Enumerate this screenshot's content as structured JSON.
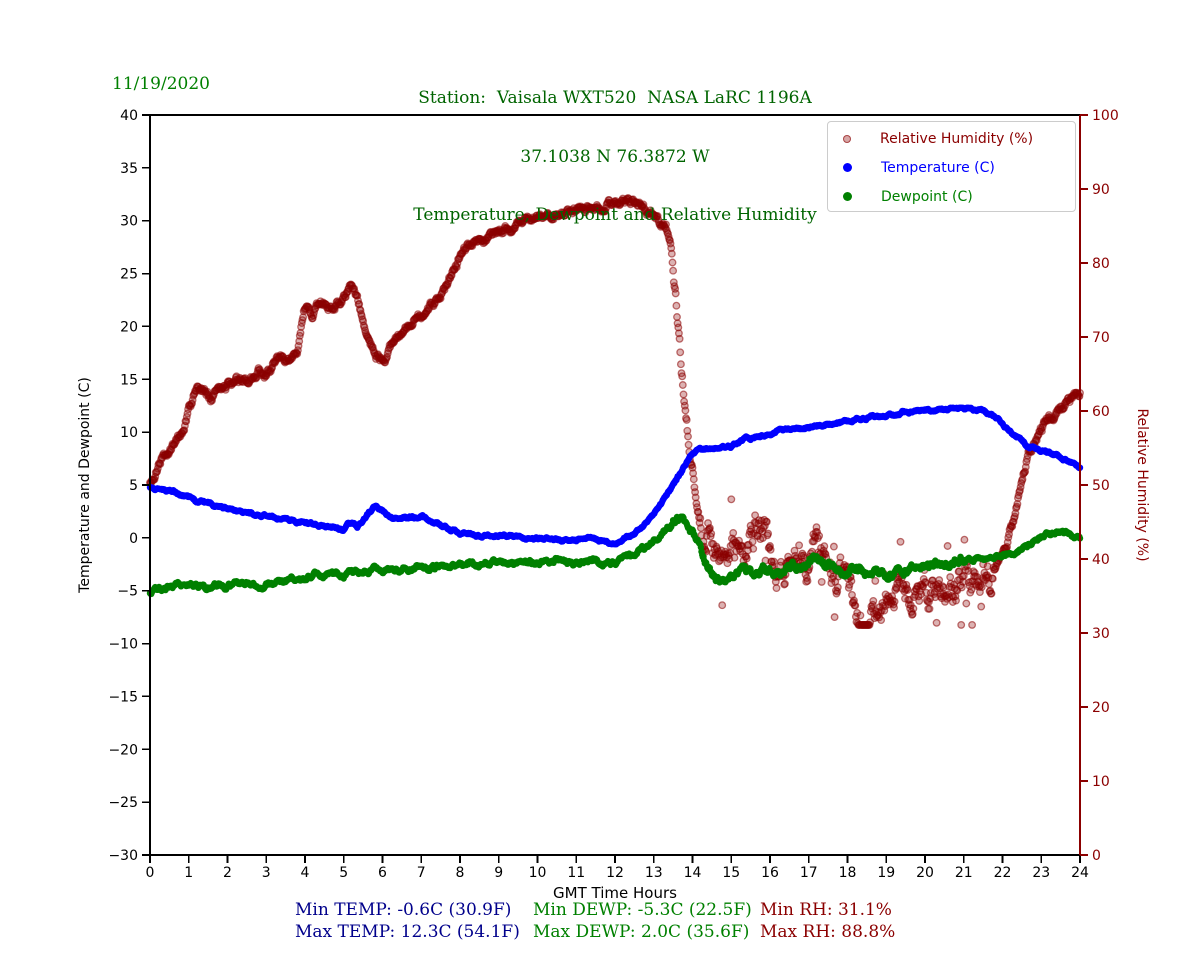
{
  "figure": {
    "date_label": "11/19/2020",
    "title_lines": [
      "Station:  Vaisala WXT520  NASA LaRC 1196A",
      "37.1038 N 76.3872 W",
      "Temperature, Dewpoint and Relative Humidity"
    ]
  },
  "colors": {
    "background": "#ffffff",
    "title_green": "#006400",
    "date_green": "#008000",
    "temperature_blue": "#0000ff",
    "dewpoint_green": "#008000",
    "humidity_darkred": "#8b0000",
    "stats_temp_blue": "#00008b",
    "stats_dewp_green": "#008000",
    "stats_rh_red": "#8b0000",
    "axis_black": "#000000",
    "legend_border": "#cccccc"
  },
  "chart_data": {
    "type": "scatter",
    "xlabel": "GMT Time Hours",
    "ylabel_left": "Temperature and Dewpoint (C)",
    "ylabel_right": "Relative Humidity (%)",
    "xlim": [
      0,
      24
    ],
    "ylim_left": [
      -30,
      40
    ],
    "ylim_right": [
      0,
      100
    ],
    "xtick_values": [
      0,
      1,
      2,
      3,
      4,
      5,
      6,
      7,
      8,
      9,
      10,
      11,
      12,
      13,
      14,
      15,
      16,
      17,
      18,
      19,
      20,
      21,
      22,
      23,
      24
    ],
    "ytick_left_values": [
      40,
      35,
      30,
      25,
      20,
      15,
      10,
      5,
      0,
      -5,
      -10,
      -15,
      -20,
      -25,
      -30
    ],
    "ytick_right_values": [
      100,
      90,
      80,
      70,
      60,
      50,
      40,
      30,
      20,
      10,
      0
    ],
    "grid": false,
    "legend": {
      "position": "upper right",
      "entries": [
        {
          "label": "Relative Humidity (%)",
          "color": "#8b0000",
          "marker": "faded-dot"
        },
        {
          "label": "Temperature (C)",
          "color": "#0000ff",
          "marker": "dot"
        },
        {
          "label": "Dewpoint (C)",
          "color": "#008000",
          "marker": "dot"
        }
      ]
    },
    "sample_interval_minutes": 1,
    "noise_seed": 20201119,
    "series": [
      {
        "name": "Relative Humidity (%)",
        "axis": "right",
        "color": "#8b0000",
        "style": {
          "radius": 3.3,
          "fill_opacity": 0.3,
          "stroke_opacity": 0.55,
          "stroke_width": 1.3
        },
        "clamp": [
          31.1,
          88.8
        ],
        "noise_segments": [
          [
            0,
            13.3,
            0.4
          ],
          [
            13.3,
            14.2,
            0.7
          ],
          [
            14.2,
            21.8,
            1.6
          ],
          [
            21.8,
            24,
            0.45
          ]
        ],
        "outliers": {
          "from": 14.2,
          "to": 21.8,
          "prob": 0.04,
          "scale": 1.5
        },
        "keypoints": [
          [
            0,
            50.5
          ],
          [
            0.2,
            52.5
          ],
          [
            0.4,
            54.5
          ],
          [
            0.6,
            55.5
          ],
          [
            0.8,
            56.5
          ],
          [
            1,
            60
          ],
          [
            1.2,
            63
          ],
          [
            1.4,
            62.5
          ],
          [
            1.6,
            61.5
          ],
          [
            1.8,
            63
          ],
          [
            2,
            63.5
          ],
          [
            2.2,
            64.5
          ],
          [
            2.4,
            64
          ],
          [
            2.6,
            64.5
          ],
          [
            2.8,
            65.5
          ],
          [
            3,
            64.5
          ],
          [
            3.2,
            66.5
          ],
          [
            3.4,
            67.5
          ],
          [
            3.6,
            66.5
          ],
          [
            3.8,
            68
          ],
          [
            4,
            74
          ],
          [
            4.2,
            73
          ],
          [
            4.4,
            74.5
          ],
          [
            4.6,
            73.5
          ],
          [
            4.8,
            74.5
          ],
          [
            5,
            75
          ],
          [
            5.2,
            77
          ],
          [
            5.4,
            74
          ],
          [
            5.6,
            70.5
          ],
          [
            5.8,
            67.5
          ],
          [
            6,
            66.5
          ],
          [
            6.2,
            68.5
          ],
          [
            6.4,
            70
          ],
          [
            6.6,
            71.5
          ],
          [
            6.8,
            72.5
          ],
          [
            7,
            73.5
          ],
          [
            7.2,
            74
          ],
          [
            7.4,
            75.5
          ],
          [
            7.6,
            76.5
          ],
          [
            7.8,
            79
          ],
          [
            8,
            81
          ],
          [
            8.2,
            82.5
          ],
          [
            8.5,
            83
          ],
          [
            8.8,
            83.5
          ],
          [
            9.1,
            84.5
          ],
          [
            9.4,
            85
          ],
          [
            9.7,
            85.5
          ],
          [
            10,
            86
          ],
          [
            10.4,
            86.5
          ],
          [
            10.8,
            87
          ],
          [
            11.2,
            87.5
          ],
          [
            11.6,
            87.5
          ],
          [
            12,
            88.5
          ],
          [
            12.2,
            88.8
          ],
          [
            12.5,
            88
          ],
          [
            12.8,
            87
          ],
          [
            13.1,
            86
          ],
          [
            13.35,
            84.5
          ],
          [
            13.5,
            79
          ],
          [
            13.6,
            73
          ],
          [
            13.7,
            66
          ],
          [
            13.8,
            61
          ],
          [
            13.9,
            56
          ],
          [
            14,
            52
          ],
          [
            14.1,
            47
          ],
          [
            14.25,
            44
          ],
          [
            14.4,
            46
          ],
          [
            14.55,
            41.5
          ],
          [
            14.7,
            40
          ],
          [
            14.9,
            41.5
          ],
          [
            15.1,
            43
          ],
          [
            15.3,
            41
          ],
          [
            15.5,
            43.5
          ],
          [
            15.7,
            45.5
          ],
          [
            15.9,
            43
          ],
          [
            16.1,
            39.5
          ],
          [
            16.3,
            38.5
          ],
          [
            16.5,
            39.5
          ],
          [
            16.7,
            40
          ],
          [
            16.9,
            39
          ],
          [
            17.1,
            41.5
          ],
          [
            17.3,
            39
          ],
          [
            17.5,
            37.5
          ],
          [
            17.7,
            37
          ],
          [
            18,
            36
          ],
          [
            18.2,
            34
          ],
          [
            18.45,
            31.5
          ],
          [
            18.7,
            32.5
          ],
          [
            19,
            34.5
          ],
          [
            19.3,
            35
          ],
          [
            19.7,
            35.5
          ],
          [
            20,
            36
          ],
          [
            20.4,
            36.5
          ],
          [
            20.8,
            37
          ],
          [
            21.2,
            37.5
          ],
          [
            21.6,
            38
          ],
          [
            22,
            40
          ],
          [
            22.2,
            43.5
          ],
          [
            22.4,
            48
          ],
          [
            22.6,
            53
          ],
          [
            22.8,
            55.5
          ],
          [
            23,
            57.5
          ],
          [
            23.2,
            59
          ],
          [
            23.5,
            60.5
          ],
          [
            23.8,
            62
          ],
          [
            24,
            62.5
          ]
        ]
      },
      {
        "name": "Temperature (C)",
        "axis": "left",
        "color": "#0000ff",
        "style": {
          "radius": 3.2,
          "fill_opacity": 1,
          "stroke_opacity": 0,
          "stroke_width": 0
        },
        "clamp": [
          -0.6,
          12.3
        ],
        "noise_segments": [
          [
            0,
            24,
            0.1
          ]
        ],
        "keypoints": [
          [
            0,
            4.7
          ],
          [
            0.3,
            4.5
          ],
          [
            0.6,
            4.5
          ],
          [
            0.9,
            3.9
          ],
          [
            1.2,
            3.4
          ],
          [
            1.5,
            3.2
          ],
          [
            2,
            2.7
          ],
          [
            2.5,
            2.4
          ],
          [
            3,
            2.1
          ],
          [
            3.5,
            1.7
          ],
          [
            4,
            1.5
          ],
          [
            4.4,
            1.2
          ],
          [
            4.8,
            0.9
          ],
          [
            5,
            0.8
          ],
          [
            5.2,
            1.5
          ],
          [
            5.35,
            1.1
          ],
          [
            5.6,
            2.2
          ],
          [
            5.8,
            2.9
          ],
          [
            6,
            2.7
          ],
          [
            6.2,
            2
          ],
          [
            6.5,
            1.9
          ],
          [
            6.8,
            2
          ],
          [
            7,
            2.1
          ],
          [
            7.2,
            1.7
          ],
          [
            7.5,
            1.2
          ],
          [
            8,
            0.5
          ],
          [
            8.5,
            0.2
          ],
          [
            9,
            0.3
          ],
          [
            9.5,
            0.1
          ],
          [
            10,
            0
          ],
          [
            10.5,
            -0.1
          ],
          [
            11,
            -0.3
          ],
          [
            11.3,
            0
          ],
          [
            11.6,
            -0.3
          ],
          [
            11.9,
            -0.6
          ],
          [
            12.2,
            -0.2
          ],
          [
            12.5,
            0.5
          ],
          [
            12.8,
            1.3
          ],
          [
            13,
            2.2
          ],
          [
            13.3,
            3.8
          ],
          [
            13.6,
            5.6
          ],
          [
            13.9,
            7.5
          ],
          [
            14.1,
            8.3
          ],
          [
            14.5,
            8.4
          ],
          [
            15,
            8.7
          ],
          [
            15.4,
            9.4
          ],
          [
            15.8,
            9.6
          ],
          [
            16.2,
            10.1
          ],
          [
            16.6,
            10.3
          ],
          [
            17,
            10.4
          ],
          [
            17.4,
            10.8
          ],
          [
            17.8,
            11
          ],
          [
            18.2,
            11.2
          ],
          [
            18.6,
            11.5
          ],
          [
            19,
            11.4
          ],
          [
            19.4,
            11.9
          ],
          [
            19.8,
            12
          ],
          [
            20.2,
            12.1
          ],
          [
            20.6,
            12.2
          ],
          [
            21,
            12.3
          ],
          [
            21.4,
            12.1
          ],
          [
            21.8,
            11.4
          ],
          [
            22.2,
            10.2
          ],
          [
            22.6,
            8.8
          ],
          [
            23,
            8.2
          ],
          [
            23.4,
            7.8
          ],
          [
            23.8,
            7.1
          ],
          [
            24,
            6.6
          ]
        ]
      },
      {
        "name": "Dewpoint (C)",
        "axis": "left",
        "color": "#008000",
        "style": {
          "radius": 3.2,
          "fill_opacity": 1,
          "stroke_opacity": 0,
          "stroke_width": 0
        },
        "clamp": [
          -5.3,
          2.0
        ],
        "noise_segments": [
          [
            0,
            13.5,
            0.18
          ],
          [
            13.5,
            21,
            0.3
          ],
          [
            21,
            24,
            0.15
          ]
        ],
        "keypoints": [
          [
            0,
            -5.1
          ],
          [
            0.2,
            -4.9
          ],
          [
            0.5,
            -4.6
          ],
          [
            0.8,
            -4.5
          ],
          [
            1.1,
            -4.4
          ],
          [
            1.4,
            -4.6
          ],
          [
            1.7,
            -4.4
          ],
          [
            2,
            -4.5
          ],
          [
            2.4,
            -4.4
          ],
          [
            2.8,
            -4.5
          ],
          [
            3.2,
            -4.4
          ],
          [
            3.6,
            -4.2
          ],
          [
            4,
            -3.9
          ],
          [
            4.3,
            -3.3
          ],
          [
            4.6,
            -3.6
          ],
          [
            5,
            -3.4
          ],
          [
            5.4,
            -3.2
          ],
          [
            5.8,
            -3.1
          ],
          [
            6.2,
            -2.9
          ],
          [
            6.6,
            -2.9
          ],
          [
            7,
            -2.8
          ],
          [
            7.5,
            -2.7
          ],
          [
            8,
            -2.5
          ],
          [
            8.5,
            -2.4
          ],
          [
            9,
            -2.3
          ],
          [
            9.5,
            -2.2
          ],
          [
            10,
            -2.3
          ],
          [
            10.5,
            -2.2
          ],
          [
            11,
            -2.4
          ],
          [
            11.4,
            -2.2
          ],
          [
            11.8,
            -2.4
          ],
          [
            12.1,
            -2.2
          ],
          [
            12.4,
            -1.7
          ],
          [
            12.7,
            -1.1
          ],
          [
            13,
            -0.4
          ],
          [
            13.3,
            0.7
          ],
          [
            13.6,
            1.6
          ],
          [
            13.75,
            2
          ],
          [
            13.9,
            0.8
          ],
          [
            14.1,
            -0.6
          ],
          [
            14.3,
            -2
          ],
          [
            14.5,
            -3.2
          ],
          [
            14.7,
            -4
          ],
          [
            14.9,
            -4.4
          ],
          [
            15.1,
            -3.6
          ],
          [
            15.3,
            -3.1
          ],
          [
            15.5,
            -3.6
          ],
          [
            15.7,
            -3.9
          ],
          [
            15.9,
            -3.2
          ],
          [
            16.1,
            -3.4
          ],
          [
            16.4,
            -2.9
          ],
          [
            16.7,
            -2.6
          ],
          [
            17,
            -2.2
          ],
          [
            17.2,
            -1.9
          ],
          [
            17.4,
            -2.3
          ],
          [
            17.7,
            -2.8
          ],
          [
            18,
            -3.2
          ],
          [
            18.3,
            -2.9
          ],
          [
            18.6,
            -3.3
          ],
          [
            19,
            -3.1
          ],
          [
            19.4,
            -2.9
          ],
          [
            19.8,
            -2.7
          ],
          [
            20.2,
            -2.5
          ],
          [
            20.6,
            -2.3
          ],
          [
            21,
            -2.2
          ],
          [
            21.4,
            -2
          ],
          [
            21.8,
            -2
          ],
          [
            22.2,
            -1.6
          ],
          [
            22.6,
            -0.9
          ],
          [
            23,
            0
          ],
          [
            23.3,
            0.6
          ],
          [
            23.6,
            0.6
          ],
          [
            23.8,
            0.3
          ],
          [
            24,
            0.1
          ]
        ]
      }
    ],
    "stats_annotations": {
      "min_temp": "Min TEMP: -0.6C (30.9F)",
      "max_temp": "Max TEMP: 12.3C (54.1F)",
      "min_dewp": "Min DEWP: -5.3C (22.5F)",
      "max_dewp": "Max DEWP: 2.0C (35.6F)",
      "min_rh": "Min RH: 31.1%",
      "max_rh": "Max RH: 88.8%"
    }
  }
}
